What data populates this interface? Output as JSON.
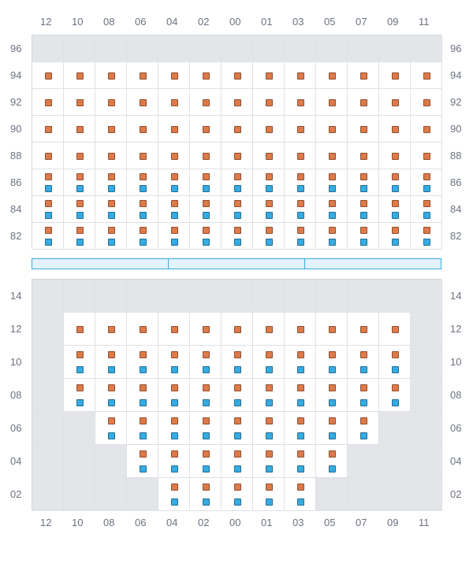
{
  "chart": {
    "type": "grid-scatter",
    "background_color": "#ffffff",
    "empty_cell_color": "#e4e5e8",
    "grid_color": "#dde1e6",
    "label_color": "#6b7280",
    "label_fontsize": 13,
    "marker_size": 9,
    "marker_colors": {
      "orange": "#dd7a4a",
      "blue": "#36abe1"
    },
    "columns": [
      "12",
      "10",
      "08",
      "06",
      "04",
      "02",
      "00",
      "01",
      "03",
      "05",
      "07",
      "09",
      "11"
    ],
    "top": {
      "row_labels": [
        "96",
        "94",
        "92",
        "90",
        "88",
        "86",
        "84",
        "82"
      ],
      "cells": [
        {
          "row": "96",
          "empty_cols": [
            "12",
            "10",
            "08",
            "06",
            "04",
            "02",
            "00",
            "01",
            "03",
            "05",
            "07",
            "09",
            "11"
          ]
        },
        {
          "row": "94",
          "markers": [
            {
              "c": "orange",
              "cols": "all"
            }
          ]
        },
        {
          "row": "92",
          "markers": [
            {
              "c": "orange",
              "cols": "all"
            }
          ]
        },
        {
          "row": "90",
          "markers": [
            {
              "c": "orange",
              "cols": "all"
            }
          ]
        },
        {
          "row": "88",
          "markers": [
            {
              "c": "orange",
              "cols": "all"
            }
          ]
        },
        {
          "row": "86",
          "markers": [
            {
              "c": "orange",
              "cols": "all",
              "pos": "top"
            },
            {
              "c": "blue",
              "cols": "all",
              "pos": "bot"
            }
          ]
        },
        {
          "row": "84",
          "markers": [
            {
              "c": "orange",
              "cols": "all",
              "pos": "top"
            },
            {
              "c": "blue",
              "cols": "all",
              "pos": "bot"
            }
          ]
        },
        {
          "row": "82",
          "markers": [
            {
              "c": "orange",
              "cols": "all",
              "pos": "top"
            },
            {
              "c": "blue",
              "cols": "all",
              "pos": "bot"
            }
          ]
        }
      ]
    },
    "divider": {
      "segments": 3,
      "fill": "#e3f3fb",
      "border": "#36abe1"
    },
    "bottom": {
      "row_labels": [
        "14",
        "12",
        "10",
        "08",
        "06",
        "04",
        "02"
      ],
      "cells": [
        {
          "row": "14",
          "empty_cols": [
            "12",
            "10",
            "08",
            "06",
            "04",
            "02",
            "00",
            "01",
            "03",
            "05",
            "07",
            "09",
            "11"
          ]
        },
        {
          "row": "12",
          "empty_cols": [
            "12",
            "11"
          ],
          "markers": [
            {
              "c": "orange",
              "cols": [
                "10",
                "08",
                "06",
                "04",
                "02",
                "00",
                "01",
                "03",
                "05",
                "07",
                "09"
              ]
            }
          ]
        },
        {
          "row": "10",
          "empty_cols": [
            "12",
            "11"
          ],
          "markers": [
            {
              "c": "orange",
              "pos": "top",
              "cols": [
                "10",
                "08",
                "06",
                "04",
                "02",
                "00",
                "01",
                "03",
                "05",
                "07",
                "09"
              ]
            },
            {
              "c": "blue",
              "pos": "bot",
              "cols": [
                "10",
                "08",
                "06",
                "04",
                "02",
                "00",
                "01",
                "03",
                "05",
                "07",
                "09"
              ]
            }
          ]
        },
        {
          "row": "08",
          "empty_cols": [
            "12",
            "11"
          ],
          "markers": [
            {
              "c": "orange",
              "pos": "top",
              "cols": [
                "10",
                "08",
                "06",
                "04",
                "02",
                "00",
                "01",
                "03",
                "05",
                "07",
                "09"
              ]
            },
            {
              "c": "blue",
              "pos": "bot",
              "cols": [
                "10",
                "08",
                "06",
                "04",
                "02",
                "00",
                "01",
                "03",
                "05",
                "07",
                "09"
              ]
            }
          ]
        },
        {
          "row": "06",
          "empty_cols": [
            "12",
            "10",
            "09",
            "11"
          ],
          "markers": [
            {
              "c": "orange",
              "pos": "top",
              "cols": [
                "08",
                "06",
                "04",
                "02",
                "00",
                "01",
                "03",
                "05",
                "07"
              ]
            },
            {
              "c": "blue",
              "pos": "bot",
              "cols": [
                "08",
                "06",
                "04",
                "02",
                "00",
                "01",
                "03",
                "05",
                "07"
              ]
            }
          ]
        },
        {
          "row": "04",
          "empty_cols": [
            "12",
            "10",
            "08",
            "07",
            "09",
            "11"
          ],
          "markers": [
            {
              "c": "orange",
              "pos": "top",
              "cols": [
                "06",
                "04",
                "02",
                "00",
                "01",
                "03",
                "05"
              ]
            },
            {
              "c": "blue",
              "pos": "bot",
              "cols": [
                "06",
                "04",
                "02",
                "00",
                "01",
                "03",
                "05"
              ]
            }
          ]
        },
        {
          "row": "02",
          "empty_cols": [
            "12",
            "10",
            "08",
            "06",
            "05",
            "07",
            "09",
            "11"
          ],
          "markers": [
            {
              "c": "orange",
              "pos": "top",
              "cols": [
                "04",
                "02",
                "00",
                "01",
                "03"
              ]
            },
            {
              "c": "blue",
              "pos": "bot",
              "cols": [
                "04",
                "02",
                "00",
                "01",
                "03"
              ]
            }
          ]
        }
      ]
    }
  }
}
